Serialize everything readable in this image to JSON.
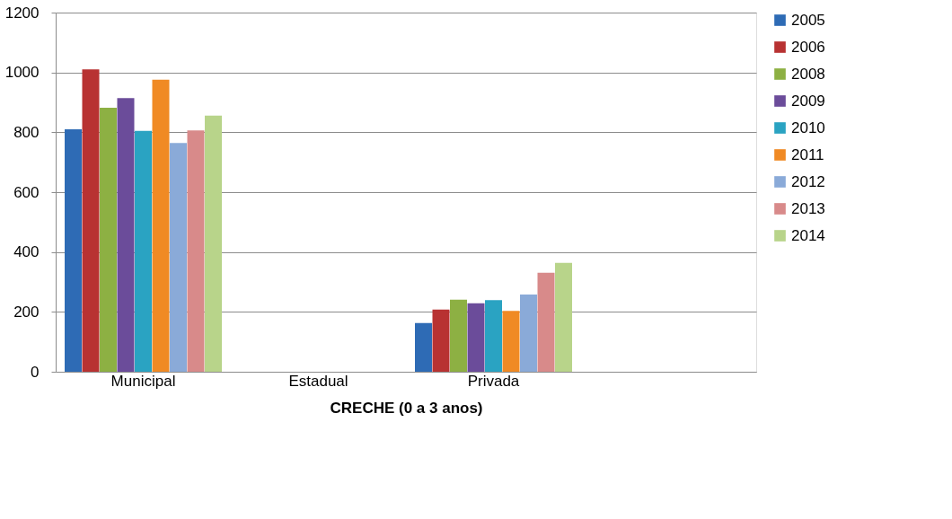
{
  "chart_data": {
    "type": "bar",
    "xlabel": "CRECHE (0 a 3 anos)",
    "categories": [
      "Municipal",
      "Estadual",
      "Privada",
      null
    ],
    "series": [
      {
        "name": "2005",
        "color": "#2e6bb5",
        "values": [
          810,
          null,
          163,
          null
        ]
      },
      {
        "name": "2006",
        "color": "#b83232",
        "values": [
          1010,
          null,
          208,
          null
        ]
      },
      {
        "name": "2008",
        "color": "#8db043",
        "values": [
          882,
          null,
          241,
          null
        ]
      },
      {
        "name": "2009",
        "color": "#6b4c9a",
        "values": [
          914,
          null,
          229,
          null
        ]
      },
      {
        "name": "2010",
        "color": "#2aa3c2",
        "values": [
          805,
          null,
          239,
          null
        ]
      },
      {
        "name": "2011",
        "color": "#f08a24",
        "values": [
          976,
          null,
          203,
          null
        ]
      },
      {
        "name": "2012",
        "color": "#8aaad8",
        "values": [
          764,
          null,
          258,
          null
        ]
      },
      {
        "name": "2013",
        "color": "#d88a8a",
        "values": [
          806,
          null,
          331,
          null
        ]
      },
      {
        "name": "2014",
        "color": "#b8d48a",
        "values": [
          856,
          null,
          364,
          null
        ]
      }
    ],
    "ylim": [
      0,
      1200
    ],
    "yticks": [
      0,
      200,
      400,
      600,
      800,
      1000,
      1200
    ],
    "grid": "y",
    "legend": "right"
  }
}
